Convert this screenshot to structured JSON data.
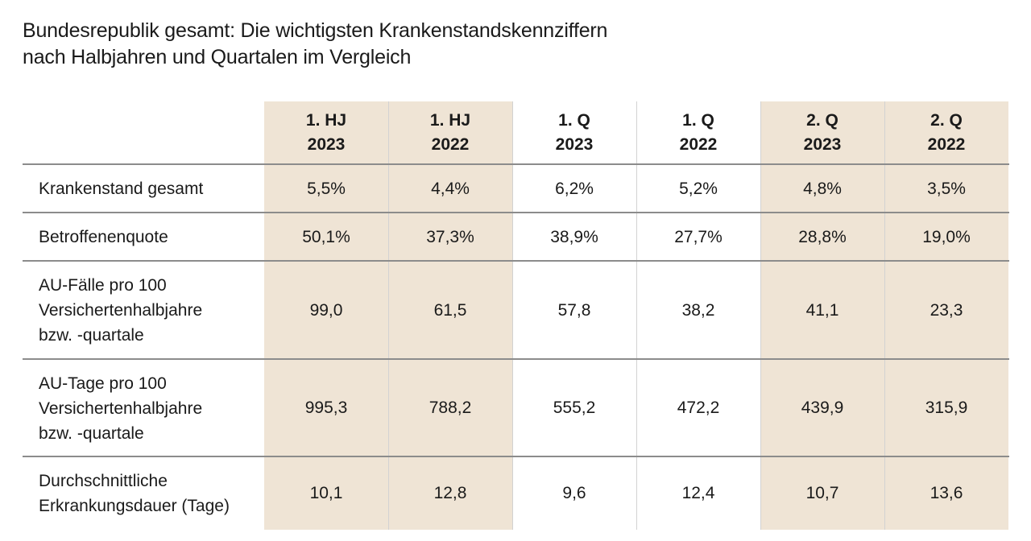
{
  "title": {
    "line1": "Bundesrepublik gesamt: Die wichtigsten Krankenstandskennziffern",
    "line2": "nach Halbjahren und Quartalen im Vergleich"
  },
  "columns": [
    {
      "line1": "1. HJ",
      "line2": "2023"
    },
    {
      "line1": "1. HJ",
      "line2": "2022"
    },
    {
      "line1": "1. Q",
      "line2": "2023"
    },
    {
      "line1": "1. Q",
      "line2": "2022"
    },
    {
      "line1": "2. Q",
      "line2": "2023"
    },
    {
      "line1": "2. Q",
      "line2": "2022"
    }
  ],
  "rows": [
    {
      "label": [
        "Krankenstand gesamt"
      ],
      "values": [
        "5,5%",
        "4,4%",
        "6,2%",
        "5,2%",
        "4,8%",
        "3,5%"
      ]
    },
    {
      "label": [
        "Betroffenenquote"
      ],
      "values": [
        "50,1%",
        "37,3%",
        "38,9%",
        "27,7%",
        "28,8%",
        "19,0%"
      ]
    },
    {
      "label": [
        "AU-Fälle pro 100",
        "Versichertenhalbjahre",
        "bzw. -quartale"
      ],
      "values": [
        "99,0",
        "61,5",
        "57,8",
        "38,2",
        "41,1",
        "23,3"
      ]
    },
    {
      "label": [
        "AU-Tage pro 100",
        "Versichertenhalbjahre",
        "bzw. -quartale"
      ],
      "values": [
        "995,3",
        "788,2",
        "555,2",
        "472,2",
        "439,9",
        "315,9"
      ]
    },
    {
      "label": [
        "Durchschnittliche",
        "Erkrankungsdauer (Tage)"
      ],
      "values": [
        "10,1",
        "12,8",
        "9,6",
        "12,4",
        "10,7",
        "13,6"
      ]
    }
  ],
  "colors": {
    "highlight_column": "#efe4d5",
    "row_divider": "#8c8c8c"
  }
}
